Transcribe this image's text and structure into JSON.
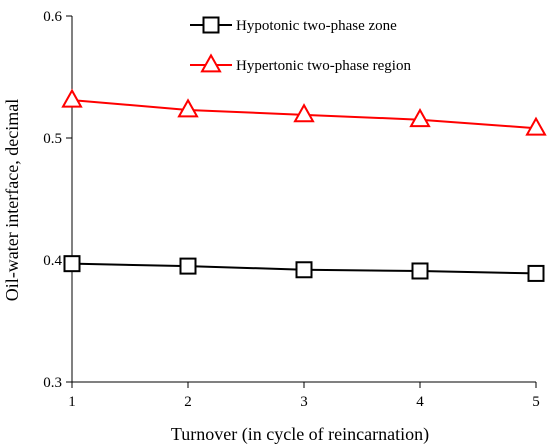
{
  "chart_data": {
    "type": "line",
    "title": "",
    "xlabel": "Turnover (in cycle of reincarnation)",
    "ylabel": "Oil-water interface, decimal",
    "x": [
      1,
      2,
      3,
      4,
      5
    ],
    "xlim": [
      1,
      5
    ],
    "ylim": [
      0.3,
      0.6
    ],
    "x_ticks": [
      "1",
      "2",
      "3",
      "4",
      "5"
    ],
    "y_ticks": [
      "0.3",
      "0.4",
      "0.5",
      "0.6"
    ],
    "grid": false,
    "legend_position": "top-right",
    "series": [
      {
        "name": "Hypotonic two-phase zone",
        "values": [
          0.397,
          0.395,
          0.392,
          0.391,
          0.389
        ],
        "color": "#000000",
        "marker": "square"
      },
      {
        "name": "Hypertonic two-phase region",
        "values": [
          0.531,
          0.523,
          0.519,
          0.515,
          0.508
        ],
        "color": "#ff0000",
        "marker": "triangle"
      }
    ]
  }
}
